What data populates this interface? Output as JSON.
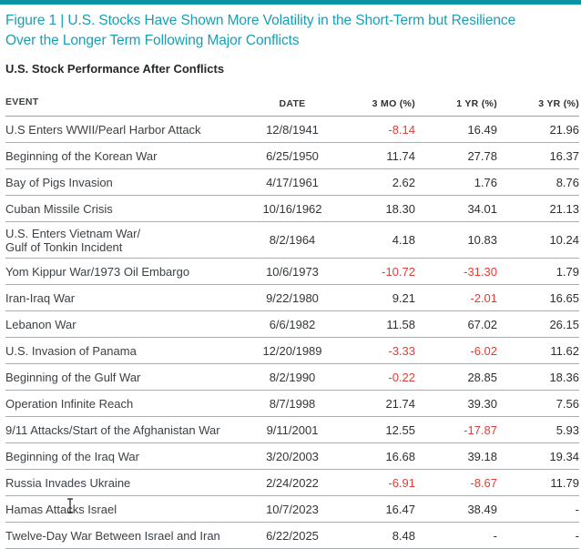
{
  "figure": {
    "title": "Figure 1 | U.S. Stocks Have Shown More Volatility in the Short-Term but Resilience\nOver the Longer Term Following Major Conflicts",
    "subtitle": "U.S. Stock Performance After Conflicts"
  },
  "colors": {
    "accent_teal": "#189fb4",
    "topbar_teal": "#0a95a6",
    "negative_red": "#e23d36",
    "header_slate": "#5d7687",
    "divider_gray": "#a9adb0"
  },
  "chart_data": {
    "type": "table",
    "title": "Figure 1 | U.S. Stocks Have Shown More Volatility in the Short-Term but Resilience Over the Longer Term Following Major Conflicts",
    "subtitle": "U.S. Stock Performance After Conflicts",
    "columns": [
      "EVENT",
      "DATE",
      "3 MO (%)",
      "1 YR (%)",
      "3 YR (%)"
    ],
    "rows": [
      {
        "event": "U.S Enters WWII/Pearl Harbor Attack",
        "date": "12/8/1941",
        "m3": "-8.14",
        "y1": "16.49",
        "y3": "21.96"
      },
      {
        "event": "Beginning of the Korean War",
        "date": "6/25/1950",
        "m3": "11.74",
        "y1": "27.78",
        "y3": "16.37"
      },
      {
        "event": "Bay of Pigs Invasion",
        "date": "4/17/1961",
        "m3": "2.62",
        "y1": "1.76",
        "y3": "8.76"
      },
      {
        "event": "Cuban Missile Crisis",
        "date": "10/16/1962",
        "m3": "18.30",
        "y1": "34.01",
        "y3": "21.13"
      },
      {
        "event": "U.S. Enters Vietnam War/\nGulf of Tonkin Incident",
        "date": "8/2/1964",
        "m3": "4.18",
        "y1": "10.83",
        "y3": "10.24"
      },
      {
        "event": "Yom Kippur War/1973 Oil Embargo",
        "date": "10/6/1973",
        "m3": "-10.72",
        "y1": "-31.30",
        "y3": "1.79"
      },
      {
        "event": "Iran-Iraq War",
        "date": "9/22/1980",
        "m3": "9.21",
        "y1": "-2.01",
        "y3": "16.65"
      },
      {
        "event": "Lebanon War",
        "date": "6/6/1982",
        "m3": "11.58",
        "y1": "67.02",
        "y3": "26.15"
      },
      {
        "event": "U.S. Invasion of Panama",
        "date": "12/20/1989",
        "m3": "-3.33",
        "y1": "-6.02",
        "y3": "11.62"
      },
      {
        "event": "Beginning of the Gulf War",
        "date": "8/2/1990",
        "m3": "-0.22",
        "y1": "28.85",
        "y3": "18.36"
      },
      {
        "event": "Operation Infinite Reach",
        "date": "8/7/1998",
        "m3": "21.74",
        "y1": "39.30",
        "y3": "7.56"
      },
      {
        "event": "9/11 Attacks/Start of the Afghanistan War",
        "date": "9/11/2001",
        "m3": "12.55",
        "y1": "-17.87",
        "y3": "5.93"
      },
      {
        "event": "Beginning of the Iraq War",
        "date": "3/20/2003",
        "m3": "16.68",
        "y1": "39.18",
        "y3": "19.34"
      },
      {
        "event": "Russia Invades Ukraine",
        "date": "2/24/2022",
        "m3": "-6.91",
        "y1": "-8.67",
        "y3": "11.79"
      },
      {
        "event": "Hamas Attacks Israel",
        "date": "10/7/2023",
        "m3": "16.47",
        "y1": "38.49",
        "y3": "-"
      },
      {
        "event": "Twelve-Day War Between Israel and Iran",
        "date": "6/22/2025",
        "m3": "8.48",
        "y1": "-",
        "y3": "-"
      }
    ]
  }
}
